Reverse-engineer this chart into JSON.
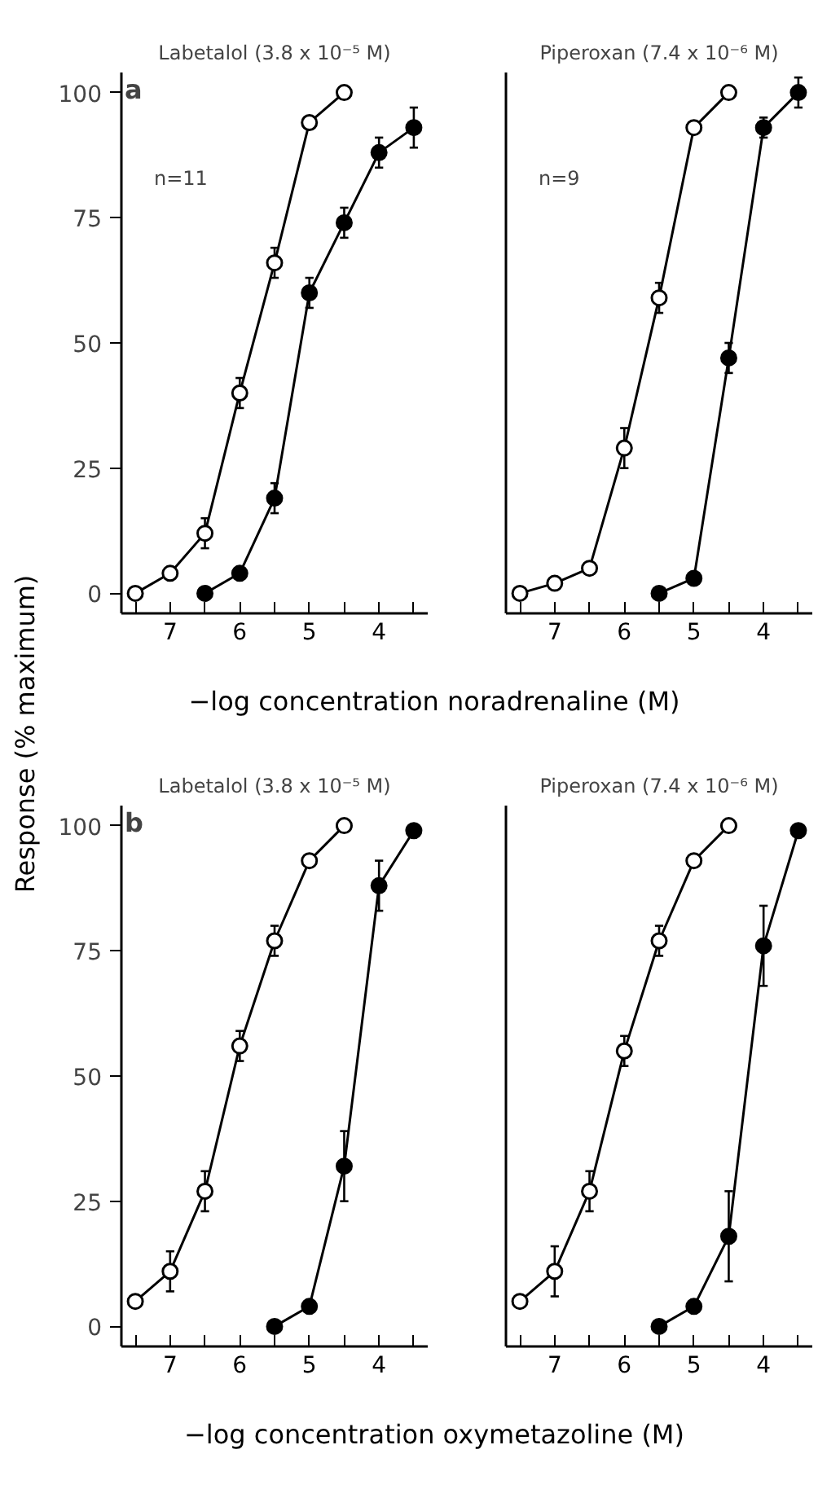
{
  "chart_data": [
    {
      "type": "line",
      "title": "Labetalol (3.8 x 10⁻⁵ M)",
      "xlabel": "−log concentration noradrenaline (M)",
      "ylabel": "Response (% maximum)",
      "annotations": [
        "a",
        "n=11"
      ],
      "xlim": [
        7.7,
        3.3
      ],
      "ylim": [
        -4,
        104
      ],
      "xticks": [
        {
          "value": 7.5,
          "label": null
        },
        7,
        {
          "value": 6.5,
          "label": null
        },
        6,
        {
          "value": 5.5,
          "label": null
        },
        5,
        {
          "value": 4.5,
          "label": null
        },
        4,
        {
          "value": 3.5,
          "label": null
        }
      ],
      "yticks": [
        0,
        25,
        50,
        75,
        100
      ],
      "grid": false,
      "marker": "circle",
      "line_style": "solid",
      "series": [
        {
          "color": "#ffffff",
          "x": [
            7.5,
            7,
            6.5,
            6,
            5.5,
            5,
            4.5
          ],
          "values": [
            0,
            4,
            12,
            40,
            66,
            94,
            100
          ],
          "errors": [
            null,
            null,
            3,
            3,
            3,
            null,
            null
          ]
        },
        {
          "color": "#000000",
          "x": [
            6.5,
            6,
            5.5,
            5,
            4.5,
            4,
            3.5
          ],
          "values": [
            0,
            4,
            19,
            60,
            74,
            88,
            93
          ],
          "errors": [
            null,
            null,
            3,
            3,
            3,
            3,
            4
          ]
        }
      ]
    },
    {
      "type": "line",
      "title": "Piperoxan (7.4 x 10⁻⁶ M)",
      "annotations": [
        "n=9"
      ],
      "tick_labels": "x",
      "xlim": [
        7.7,
        3.3
      ],
      "ylim": [
        -4,
        104
      ],
      "xticks": [
        {
          "value": 7.5,
          "label": null
        },
        7,
        {
          "value": 6.5,
          "label": null
        },
        6,
        {
          "value": 5.5,
          "label": null
        },
        5,
        {
          "value": 4.5,
          "label": null
        },
        4,
        {
          "value": 3.5,
          "label": null
        }
      ],
      "grid": false,
      "marker": "circle",
      "line_style": "solid",
      "series": [
        {
          "color": "#ffffff",
          "x": [
            7.5,
            7,
            6.5,
            6,
            5.5,
            5,
            4.5
          ],
          "values": [
            0,
            2,
            5,
            29,
            59,
            93,
            100
          ],
          "errors": [
            null,
            null,
            null,
            4,
            3,
            null,
            null
          ]
        },
        {
          "color": "#000000",
          "x": [
            5.5,
            5,
            4.5,
            4,
            3.5
          ],
          "values": [
            0,
            3,
            47,
            93,
            100
          ],
          "errors": [
            null,
            null,
            3,
            2,
            3
          ]
        }
      ]
    },
    {
      "type": "line",
      "title": "Labetalol (3.8 x 10⁻⁵ M)",
      "xlabel": "−log concentration oxymetazoline (M)",
      "annotations": [
        "b"
      ],
      "xlim": [
        7.7,
        3.3
      ],
      "ylim": [
        -4,
        104
      ],
      "xticks": [
        {
          "value": 7.5,
          "label": null
        },
        7,
        {
          "value": 6.5,
          "label": null
        },
        6,
        {
          "value": 5.5,
          "label": null
        },
        5,
        {
          "value": 4.5,
          "label": null
        },
        4,
        {
          "value": 3.5,
          "label": null
        }
      ],
      "yticks": [
        0,
        25,
        50,
        75,
        100
      ],
      "grid": false,
      "marker": "circle",
      "line_style": "solid",
      "series": [
        {
          "color": "#ffffff",
          "x": [
            7.5,
            7,
            6.5,
            6,
            5.5,
            5,
            4.5
          ],
          "values": [
            5,
            11,
            27,
            56,
            77,
            93,
            100
          ],
          "errors": [
            null,
            4,
            4,
            3,
            3,
            null,
            null
          ]
        },
        {
          "color": "#000000",
          "x": [
            5.5,
            5,
            4.5,
            4,
            3.5
          ],
          "values": [
            0,
            4,
            32,
            88,
            99
          ],
          "errors": [
            null,
            null,
            7,
            5,
            null
          ]
        }
      ]
    },
    {
      "type": "line",
      "title": "Piperoxan (7.4 x 10⁻⁶ M)",
      "tick_labels": "x",
      "xlim": [
        7.7,
        3.3
      ],
      "ylim": [
        -4,
        104
      ],
      "xticks": [
        {
          "value": 7.5,
          "label": null
        },
        7,
        {
          "value": 6.5,
          "label": null
        },
        6,
        {
          "value": 5.5,
          "label": null
        },
        5,
        {
          "value": 4.5,
          "label": null
        },
        4,
        {
          "value": 3.5,
          "label": null
        }
      ],
      "grid": false,
      "marker": "circle",
      "line_style": "solid",
      "series": [
        {
          "color": "#ffffff",
          "x": [
            7.5,
            7,
            6.5,
            6,
            5.5,
            5,
            4.5
          ],
          "values": [
            5,
            11,
            27,
            55,
            77,
            93,
            100
          ],
          "errors": [
            null,
            5,
            4,
            3,
            3,
            null,
            null
          ]
        },
        {
          "color": "#000000",
          "x": [
            5.5,
            5,
            4.5,
            4,
            3.5
          ],
          "values": [
            0,
            4,
            18,
            76,
            99
          ],
          "errors": [
            null,
            null,
            9,
            8,
            null
          ]
        }
      ]
    }
  ]
}
